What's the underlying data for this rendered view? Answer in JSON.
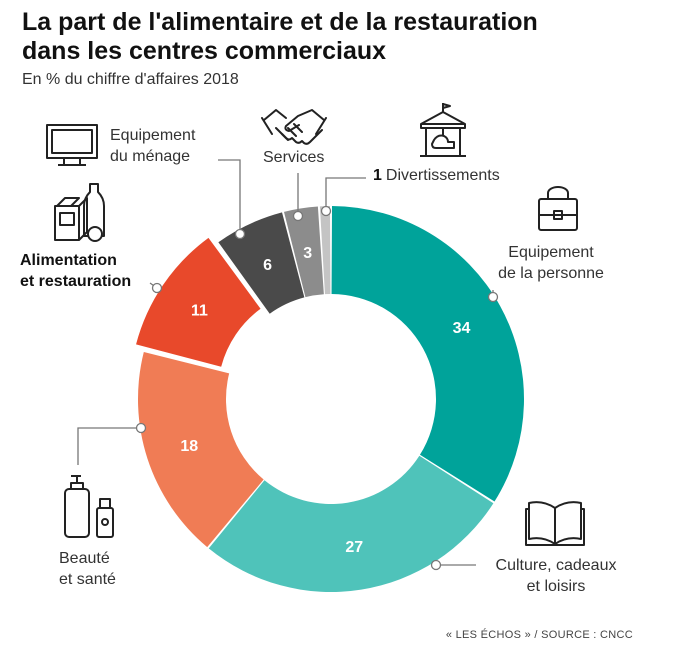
{
  "title_lines": [
    "La part de l'alimentaire et de la restauration",
    "dans les centres commerciaux"
  ],
  "subtitle": "En % du chiffre d'affaires 2018",
  "source": "« LES ÉCHOS » / SOURCE : CNCC",
  "chart_data": {
    "type": "pie",
    "variant": "donut",
    "unit": "%",
    "slices": [
      {
        "label": "Equipement de la personne",
        "label_lines": [
          "Equipement",
          "de la personne"
        ],
        "value": 34,
        "color": "#00a39a",
        "icon": "handbag-icon"
      },
      {
        "label": "Culture, cadeaux et loisirs",
        "label_lines": [
          "Culture, cadeaux",
          "et loisirs"
        ],
        "value": 27,
        "color": "#4fc3ba",
        "icon": "open-book-icon"
      },
      {
        "label": "Beauté et santé",
        "label_lines": [
          "Beauté",
          "et santé"
        ],
        "value": 18,
        "color": "#f07c55",
        "icon": "cosmetics-bottles-icon"
      },
      {
        "label": "Alimentation et restauration",
        "label_lines": [
          "Alimentation",
          "et restauration"
        ],
        "value": 11,
        "color": "#e8492b",
        "icon": "groceries-icon",
        "highlighted": true
      },
      {
        "label": "Equipement du ménage",
        "label_lines": [
          "Equipement",
          "du ménage"
        ],
        "value": 6,
        "color": "#4a4a4a",
        "icon": "television-icon"
      },
      {
        "label": "Services",
        "label_lines": [
          "Services"
        ],
        "value": 3,
        "color": "#8c8c8c",
        "icon": "handshake-icon"
      },
      {
        "label": "Divertissements",
        "label_lines": [
          "Divertissements"
        ],
        "value": 1,
        "color": "#c4c4c4",
        "icon": "carousel-icon"
      }
    ]
  }
}
